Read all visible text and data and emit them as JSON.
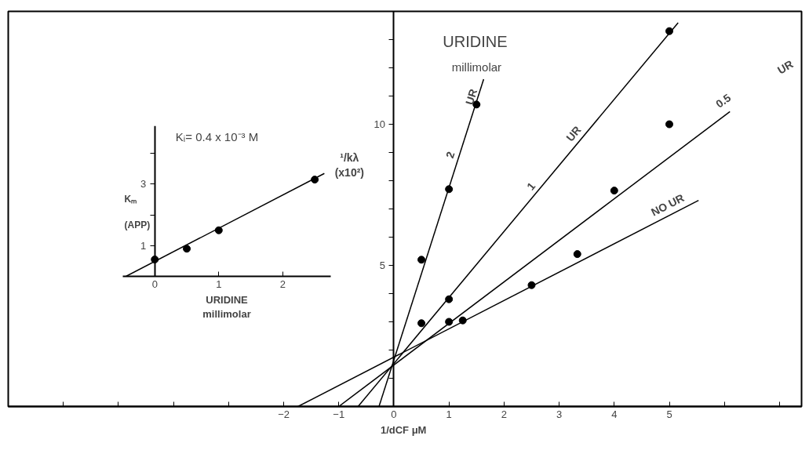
{
  "chart_data": [
    {
      "type": "scatter",
      "title": "URIDINE",
      "subtitle": "millimolar",
      "xlabel": "1/dCF  μM",
      "ylabel": "¹/kλ\n(x10²)",
      "xlim": [
        -7,
        7.4
      ],
      "ylim": [
        0,
        14
      ],
      "xticks": [
        {
          "value": -6,
          "label": null
        },
        {
          "value": -5,
          "label": null
        },
        {
          "value": -4,
          "label": null
        },
        {
          "value": -3,
          "label": null
        },
        -2,
        -1,
        0,
        1,
        2,
        3,
        4,
        5,
        {
          "value": 6,
          "label": null
        },
        {
          "value": 7,
          "label": null
        }
      ],
      "yticks": [
        {
          "value": 1,
          "label": null
        },
        {
          "value": 2,
          "label": null
        },
        {
          "value": 3,
          "label": null
        },
        {
          "value": 4,
          "label": null
        },
        5,
        {
          "value": 6,
          "label": null
        },
        {
          "value": 7,
          "label": null
        },
        {
          "value": 8,
          "label": null
        },
        {
          "value": 9,
          "label": null
        },
        10,
        {
          "value": 11,
          "label": null
        },
        {
          "value": 12,
          "label": null
        },
        {
          "value": 13,
          "label": null
        }
      ],
      "grid": false,
      "series": [
        {
          "type": "scatter",
          "marker": "circle",
          "color": "#000000",
          "x": [
            0.5,
            1,
            1.5
          ],
          "values": [
            5.2,
            7.7,
            10.7
          ]
        },
        {
          "type": "scatter",
          "marker": "circle",
          "color": "#000000",
          "x": [
            0.5,
            1,
            5
          ],
          "values": [
            2.95,
            3.8,
            13.3
          ]
        },
        {
          "type": "scatter",
          "marker": "circle",
          "color": "#000000",
          "x": [
            1,
            4,
            5
          ],
          "values": [
            3.0,
            7.65,
            10.0
          ]
        },
        {
          "type": "scatter",
          "marker": "circle",
          "color": "#000000",
          "x": [
            1.25,
            2.5,
            3.33
          ],
          "values": [
            3.05,
            4.3,
            5.4
          ]
        },
        {
          "type": "line",
          "line_style": "solid",
          "color": "#000000",
          "x": [
            -0.27,
            1.63
          ],
          "values": [
            0,
            11.6
          ]
        },
        {
          "type": "line",
          "line_style": "solid",
          "color": "#000000",
          "x": [
            -0.65,
            5.16
          ],
          "values": [
            0,
            13.6
          ]
        },
        {
          "type": "line",
          "line_style": "solid",
          "color": "#000000",
          "x": [
            -1.0,
            6.1
          ],
          "values": [
            0,
            10.45
          ]
        },
        {
          "type": "line",
          "line_style": "solid",
          "color": "#000000",
          "x": [
            -1.74,
            5.53
          ],
          "values": [
            0,
            7.3
          ]
        }
      ],
      "annotations": [
        "2",
        "UR",
        "1",
        "UR",
        "0.5",
        "NO  UR",
        "UR"
      ]
    },
    {
      "type": "scatter",
      "xlabel": "URIDINE\nmillimolar",
      "ylabel": "Kₘ\n\n(APP)",
      "xlim": [
        -0.5,
        2.75
      ],
      "ylim": [
        0,
        4.9
      ],
      "xticks": [
        0,
        1,
        2
      ],
      "yticks": [
        1,
        {
          "value": 2,
          "label": null
        },
        3,
        {
          "value": 4,
          "label": null
        }
      ],
      "grid": false,
      "series": [
        {
          "type": "scatter",
          "marker": "circle",
          "color": "#000000",
          "x": [
            0,
            0.5,
            1,
            2.5
          ],
          "values": [
            0.55,
            0.9,
            1.5,
            3.15
          ]
        },
        {
          "type": "line",
          "line_style": "solid",
          "color": "#000000",
          "x": [
            -0.45,
            2.65
          ],
          "values": [
            0,
            3.35
          ]
        }
      ],
      "annotations": [
        "Kᵢ= 0.4 x 10⁻³ M"
      ]
    }
  ]
}
